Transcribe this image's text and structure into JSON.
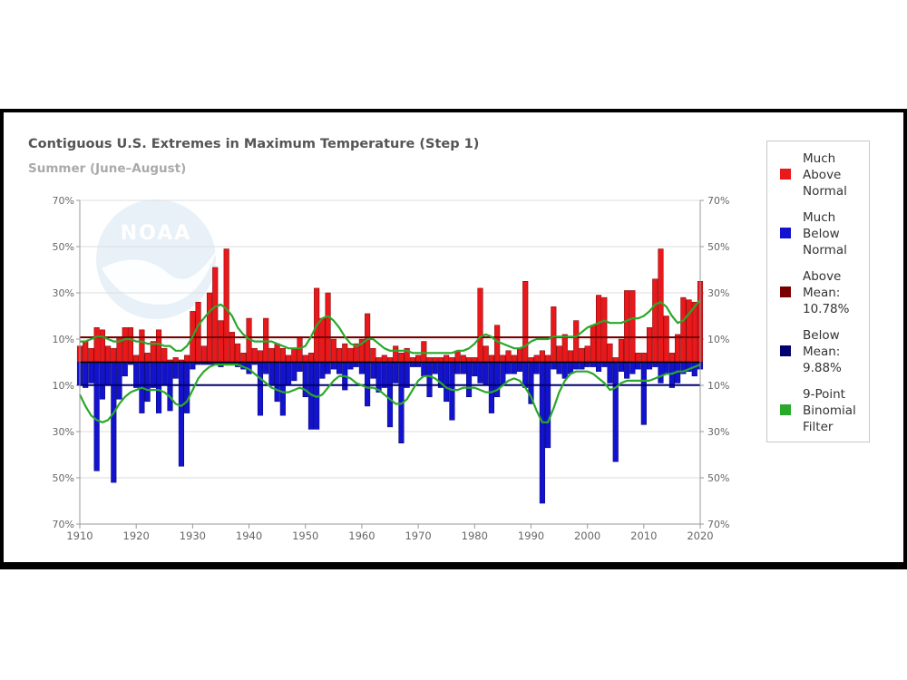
{
  "chart_data": {
    "type": "bar",
    "title": "Contiguous U.S. Extremes in Maximum Temperature (Step 1)",
    "subtitle": "Summer (June–August)",
    "logo_text": "NOAA",
    "x_ticks": [
      "1910",
      "1920",
      "1930",
      "1940",
      "1950",
      "1960",
      "1970",
      "1980",
      "1990",
      "2000",
      "2010",
      "2020"
    ],
    "y_ticks": [
      "70%",
      "50%",
      "30%",
      "10%",
      "10%",
      "30%",
      "50%",
      "70%"
    ],
    "y_tick_values": [
      70,
      50,
      30,
      10,
      -10,
      -30,
      -50,
      -70
    ],
    "ylim": [
      -70,
      70
    ],
    "xlim": [
      1910,
      2020
    ],
    "grid": true,
    "legend_position": "right",
    "colors": {
      "much_above": "#e8181b",
      "much_below": "#1313cf",
      "above_mean": "#7a0000",
      "below_mean": "#000070",
      "filter": "#2aa82a"
    },
    "legend": [
      {
        "key": "much_above",
        "lines": [
          "Much",
          "Above",
          "Normal"
        ]
      },
      {
        "key": "much_below",
        "lines": [
          "Much",
          "Below",
          "Normal"
        ]
      },
      {
        "key": "above_mean",
        "lines": [
          "Above",
          "Mean:",
          "10.78%"
        ]
      },
      {
        "key": "below_mean",
        "lines": [
          "Below",
          "Mean:",
          "9.88%"
        ]
      },
      {
        "key": "filter",
        "lines": [
          "9-Point",
          "Binomial",
          "Filter"
        ]
      }
    ],
    "above_mean": 10.78,
    "below_mean": 9.88,
    "years": [
      1910,
      1911,
      1912,
      1913,
      1914,
      1915,
      1916,
      1917,
      1918,
      1919,
      1920,
      1921,
      1922,
      1923,
      1924,
      1925,
      1926,
      1927,
      1928,
      1929,
      1930,
      1931,
      1932,
      1933,
      1934,
      1935,
      1936,
      1937,
      1938,
      1939,
      1940,
      1941,
      1942,
      1943,
      1944,
      1945,
      1946,
      1947,
      1948,
      1949,
      1950,
      1951,
      1952,
      1953,
      1954,
      1955,
      1956,
      1957,
      1958,
      1959,
      1960,
      1961,
      1962,
      1963,
      1964,
      1965,
      1966,
      1967,
      1968,
      1969,
      1970,
      1971,
      1972,
      1973,
      1974,
      1975,
      1976,
      1977,
      1978,
      1979,
      1980,
      1981,
      1982,
      1983,
      1984,
      1985,
      1986,
      1987,
      1988,
      1989,
      1990,
      1991,
      1992,
      1993,
      1994,
      1995,
      1996,
      1997,
      1998,
      1999,
      2000,
      2001,
      2002,
      2003,
      2004,
      2005,
      2006,
      2007,
      2008,
      2009,
      2010,
      2011,
      2012,
      2013,
      2014,
      2015,
      2016,
      2017,
      2018,
      2019,
      2020
    ],
    "much_above": [
      7,
      9,
      6,
      15,
      14,
      7,
      6,
      11,
      15,
      15,
      3,
      14,
      4,
      9,
      14,
      6,
      1,
      2,
      1,
      3,
      22,
      26,
      7,
      30,
      41,
      18,
      49,
      13,
      8,
      4,
      19,
      6,
      5,
      19,
      6,
      8,
      6,
      3,
      6,
      11,
      3,
      4,
      32,
      19,
      30,
      10,
      6,
      8,
      6,
      8,
      10,
      21,
      6,
      2,
      3,
      2,
      7,
      4,
      6,
      2,
      3,
      9,
      2,
      2,
      2,
      3,
      2,
      5,
      3,
      2,
      2,
      32,
      7,
      3,
      16,
      3,
      5,
      3,
      6,
      35,
      2,
      3,
      5,
      3,
      24,
      7,
      12,
      5,
      18,
      6,
      7,
      16,
      29,
      28,
      8,
      2,
      10,
      31,
      31,
      4,
      4,
      15,
      36,
      49,
      20,
      4,
      12,
      28,
      27,
      26,
      35
    ],
    "much_below": [
      10,
      11,
      9,
      47,
      16,
      10,
      52,
      16,
      6,
      1,
      11,
      22,
      17,
      11,
      22,
      10,
      21,
      7,
      45,
      22,
      3,
      1,
      1,
      1,
      1,
      2,
      1,
      1,
      2,
      3,
      5,
      1,
      23,
      5,
      10,
      17,
      23,
      10,
      8,
      4,
      15,
      29,
      29,
      7,
      5,
      3,
      5,
      12,
      3,
      2,
      5,
      19,
      7,
      13,
      11,
      28,
      9,
      35,
      11,
      2,
      2,
      6,
      15,
      5,
      11,
      17,
      25,
      5,
      5,
      15,
      6,
      9,
      10,
      22,
      15,
      10,
      5,
      5,
      4,
      11,
      18,
      5,
      61,
      37,
      3,
      5,
      7,
      5,
      3,
      3,
      2,
      2,
      4,
      2,
      9,
      43,
      4,
      7,
      5,
      3,
      27,
      3,
      2,
      9,
      5,
      11,
      9,
      5,
      4,
      6,
      3
    ],
    "filter_above": [
      9,
      9,
      10,
      11,
      11,
      10,
      9,
      9,
      10,
      10,
      9,
      9,
      8,
      8,
      8,
      7,
      7,
      5,
      5,
      7,
      11,
      16,
      19,
      22,
      24,
      25,
      23,
      20,
      15,
      12,
      10,
      9,
      9,
      9,
      9,
      8,
      7,
      6,
      6,
      6,
      7,
      11,
      16,
      19,
      20,
      18,
      15,
      11,
      8,
      7,
      8,
      10,
      10,
      8,
      6,
      5,
      5,
      5,
      5,
      4,
      4,
      4,
      4,
      4,
      4,
      4,
      4,
      5,
      5,
      6,
      8,
      11,
      12,
      11,
      9,
      8,
      7,
      6,
      6,
      7,
      9,
      10,
      10,
      10,
      11,
      11,
      11,
      11,
      11,
      13,
      15,
      16,
      17,
      18,
      17,
      17,
      17,
      18,
      19,
      19,
      20,
      22,
      25,
      26,
      24,
      20,
      17,
      18,
      21,
      24,
      27
    ],
    "filter_below": [
      -14,
      -19,
      -23,
      -25,
      -26,
      -25,
      -22,
      -18,
      -15,
      -13,
      -12,
      -11,
      -12,
      -12,
      -12,
      -13,
      -15,
      -18,
      -19,
      -17,
      -12,
      -7,
      -4,
      -2,
      -1,
      -1,
      -1,
      -1,
      -1,
      -2,
      -3,
      -5,
      -7,
      -9,
      -11,
      -12,
      -13,
      -13,
      -12,
      -11,
      -12,
      -14,
      -15,
      -14,
      -11,
      -8,
      -6,
      -6,
      -7,
      -9,
      -10,
      -11,
      -11,
      -12,
      -14,
      -16,
      -18,
      -18,
      -16,
      -12,
      -8,
      -6,
      -6,
      -7,
      -9,
      -11,
      -12,
      -12,
      -11,
      -11,
      -11,
      -12,
      -13,
      -13,
      -12,
      -10,
      -8,
      -7,
      -8,
      -11,
      -15,
      -21,
      -26,
      -26,
      -20,
      -13,
      -8,
      -5,
      -4,
      -4,
      -4,
      -5,
      -7,
      -9,
      -12,
      -11,
      -9,
      -8,
      -8,
      -8,
      -8,
      -8,
      -7,
      -6,
      -5,
      -5,
      -4,
      -4,
      -3,
      -2,
      -1
    ]
  }
}
